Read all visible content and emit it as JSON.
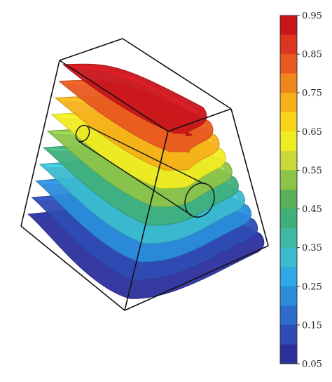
{
  "chart_data": {
    "type": "heatmap",
    "subtype": "3d-isosurface-slices",
    "title": "",
    "colorbar": {
      "placement": "right",
      "min": 0.05,
      "max": 0.95,
      "tick_labels": [
        "0.95",
        "0.85",
        "0.75",
        "0.65",
        "0.55",
        "0.45",
        "0.35",
        "0.25",
        "0.15",
        "0.05"
      ],
      "bands": [
        {
          "from": 0.9,
          "to": 0.95,
          "color": "#c9141b"
        },
        {
          "from": 0.85,
          "to": 0.9,
          "color": "#dc3620"
        },
        {
          "from": 0.8,
          "to": 0.85,
          "color": "#e85a20"
        },
        {
          "from": 0.75,
          "to": 0.8,
          "color": "#f0861c"
        },
        {
          "from": 0.7,
          "to": 0.75,
          "color": "#f6b01a"
        },
        {
          "from": 0.65,
          "to": 0.7,
          "color": "#f7d41a"
        },
        {
          "from": 0.6,
          "to": 0.65,
          "color": "#f0ec22"
        },
        {
          "from": 0.55,
          "to": 0.6,
          "color": "#c8da3a"
        },
        {
          "from": 0.5,
          "to": 0.55,
          "color": "#8cc44a"
        },
        {
          "from": 0.45,
          "to": 0.5,
          "color": "#58b058"
        },
        {
          "from": 0.4,
          "to": 0.45,
          "color": "#3faf7c"
        },
        {
          "from": 0.35,
          "to": 0.4,
          "color": "#3fb9a4"
        },
        {
          "from": 0.3,
          "to": 0.35,
          "color": "#3bbad0"
        },
        {
          "from": 0.25,
          "to": 0.3,
          "color": "#2ea8e6"
        },
        {
          "from": 0.2,
          "to": 0.25,
          "color": "#2a8cda"
        },
        {
          "from": 0.15,
          "to": 0.2,
          "color": "#2d6cc8"
        },
        {
          "from": 0.1,
          "to": 0.15,
          "color": "#2e4cb4"
        },
        {
          "from": 0.05,
          "to": 0.1,
          "color": "#2c2f9c"
        }
      ]
    },
    "isosurface_levels": [
      0.95,
      0.85,
      0.75,
      0.65,
      0.55,
      0.45,
      0.35,
      0.25,
      0.15,
      0.05
    ],
    "grid": false
  }
}
